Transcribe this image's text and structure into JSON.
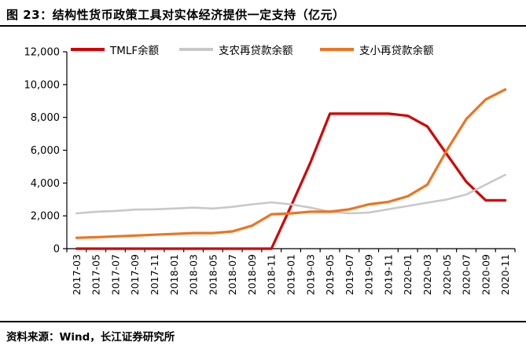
{
  "header": {
    "title": "图 23：结构性货币政策工具对实体经济提供一定支持（亿元）"
  },
  "footer": {
    "source": "资料来源：Wind，长江证券研究所"
  },
  "chart_data": {
    "type": "line",
    "title": "结构性货币政策工具对实体经济提供一定支持（亿元）",
    "xlabel": "",
    "ylabel": "",
    "ylim": [
      0,
      12000
    ],
    "yticks": [
      0,
      2000,
      4000,
      6000,
      8000,
      10000,
      12000
    ],
    "grid": false,
    "legend_position": "top",
    "categories": [
      "2017-03",
      "2017-05",
      "2017-07",
      "2017-09",
      "2017-11",
      "2018-01",
      "2018-03",
      "2018-05",
      "2018-07",
      "2018-09",
      "2018-11",
      "2019-01",
      "2019-03",
      "2019-05",
      "2019-07",
      "2019-09",
      "2019-11",
      "2020-01",
      "2020-03",
      "2020-05",
      "2020-07",
      "2020-09",
      "2020-11"
    ],
    "series": [
      {
        "name": "TMLF余额",
        "color": "#d40000",
        "values": [
          0,
          0,
          0,
          0,
          0,
          0,
          0,
          0,
          0,
          0,
          0,
          2575,
          5250,
          8227,
          8227,
          8227,
          8227,
          8100,
          7450,
          5750,
          4080,
          2946,
          2946
        ]
      },
      {
        "name": "支农再贷款余额",
        "color": "#c8c8c8",
        "values": [
          2150,
          2250,
          2300,
          2380,
          2400,
          2450,
          2500,
          2450,
          2550,
          2700,
          2820,
          2700,
          2500,
          2250,
          2150,
          2200,
          2400,
          2600,
          2800,
          3000,
          3300,
          3900,
          4500
        ]
      },
      {
        "name": "支小再贷款余额",
        "color": "#ee7420",
        "values": [
          660,
          700,
          750,
          800,
          850,
          900,
          950,
          950,
          1050,
          1400,
          2100,
          2150,
          2250,
          2250,
          2400,
          2700,
          2850,
          3200,
          3900,
          6000,
          7900,
          9100,
          9700
        ]
      }
    ]
  }
}
